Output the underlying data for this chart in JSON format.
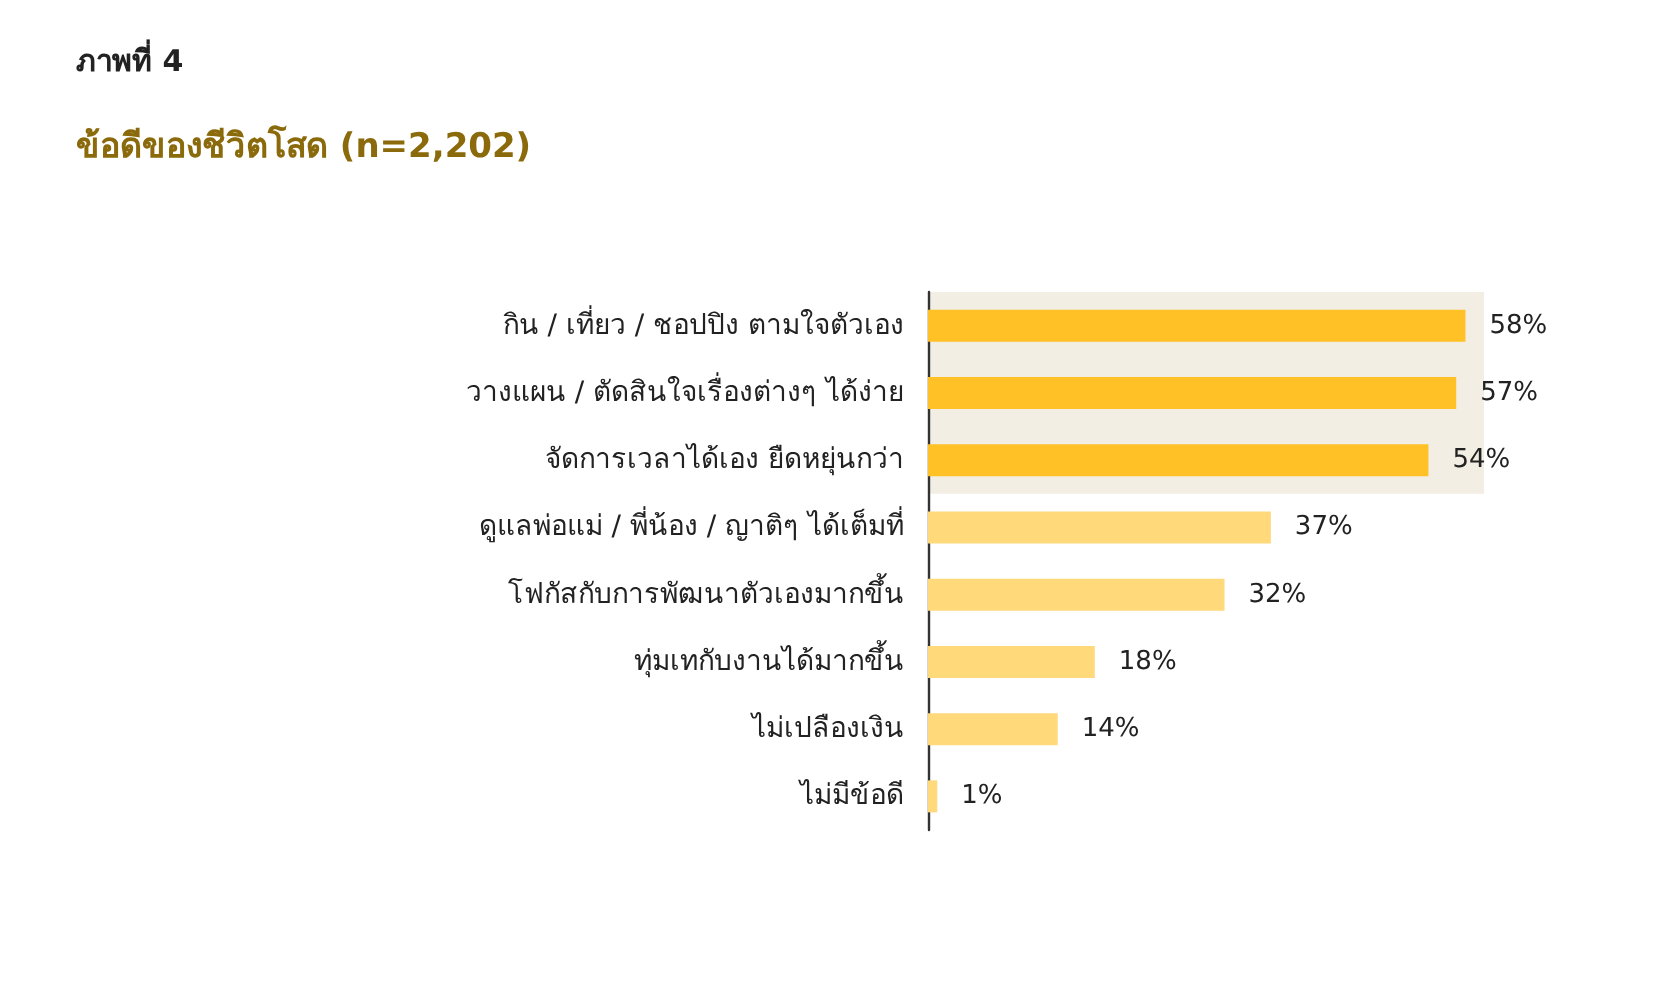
{
  "chart_data": {
    "type": "bar",
    "orientation": "horizontal",
    "subtitle": "ภาพที่ 4",
    "title": "ข้อดีของชีวิตโสด (n=2,202)",
    "categories": [
      "กิน / เที่ยว / ชอปปิง ตามใจตัวเอง",
      "วางแผน / ตัดสินใจเรื่องต่างๆ ได้ง่าย",
      "จัดการเวลาได้เอง ยืดหยุ่นกว่า",
      "ดูแลพ่อแม่ / พี่น้อง / ญาติๆ ได้เต็มที่",
      "โฟกัสกับการพัฒนาตัวเองมากขึ้น",
      "ทุ่มเทกับงานได้มากขึ้น",
      "ไม่เปลืองเงิน",
      "ไม่มีข้อดี"
    ],
    "values": [
      58,
      57,
      54,
      37,
      32,
      18,
      14,
      1
    ],
    "colors": [
      "#ffc125",
      "#ffc125",
      "#ffc125",
      "#ffd97a",
      "#ffd97a",
      "#ffd97a",
      "#ffd97a",
      "#ffd97a"
    ],
    "value_labels": [
      "58%",
      "57%",
      "54%",
      "37%",
      "32%",
      "18%",
      "14%",
      "1%"
    ],
    "bands": [
      {
        "axis": "y",
        "from": "กิน / เที่ยว / ชอปปิง ตามใจตัวเอง",
        "to": "จัดการเวลาได้เอง ยืดหยุ่นกว่า",
        "color": "#f3eee3"
      }
    ],
    "grid": false
  }
}
